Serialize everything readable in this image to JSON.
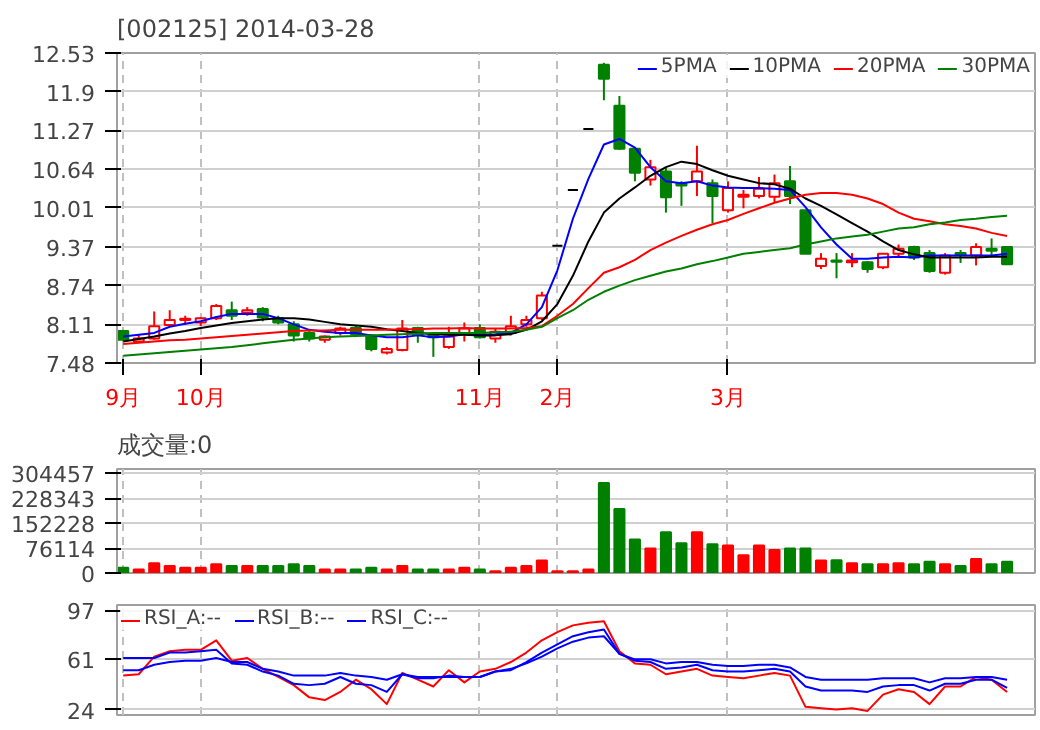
{
  "chart_data": [
    {
      "type": "candlestick",
      "title": "[002125] 2014-03-28",
      "categories": [
        "9月",
        null,
        null,
        null,
        null,
        "10月",
        null,
        null,
        null,
        null,
        null,
        null,
        null,
        null,
        null,
        null,
        null,
        null,
        null,
        null,
        null,
        null,
        null,
        "11月",
        null,
        null,
        null,
        null,
        "2月",
        null,
        null,
        null,
        null,
        null,
        null,
        null,
        null,
        null,
        null,
        "3月",
        null,
        null,
        null,
        null,
        null,
        null,
        null,
        null,
        null,
        null,
        null,
        null,
        null,
        null,
        null,
        null,
        null,
        null
      ],
      "ohlc": [
        [
          8.0,
          8.02,
          7.84,
          7.86
        ],
        [
          7.83,
          7.95,
          7.81,
          7.88
        ],
        [
          7.88,
          8.32,
          7.86,
          8.08
        ],
        [
          8.1,
          8.34,
          8.08,
          8.18
        ],
        [
          8.18,
          8.25,
          8.1,
          8.2
        ],
        [
          8.14,
          8.23,
          8.08,
          8.21
        ],
        [
          8.21,
          8.44,
          8.18,
          8.41
        ],
        [
          8.34,
          8.48,
          8.18,
          8.25
        ],
        [
          8.3,
          8.39,
          8.25,
          8.34
        ],
        [
          8.36,
          8.39,
          8.16,
          8.22
        ],
        [
          8.21,
          8.25,
          8.11,
          8.14
        ],
        [
          8.11,
          8.16,
          7.83,
          7.93
        ],
        [
          7.97,
          8.0,
          7.83,
          7.88
        ],
        [
          7.86,
          7.93,
          7.81,
          7.91
        ],
        [
          7.97,
          8.07,
          7.93,
          8.04
        ],
        [
          8.05,
          8.08,
          7.91,
          7.95
        ],
        [
          7.93,
          7.95,
          7.67,
          7.71
        ],
        [
          7.65,
          7.74,
          7.62,
          7.71
        ],
        [
          7.69,
          8.18,
          7.67,
          8.04
        ],
        [
          8.05,
          8.07,
          7.81,
          7.95
        ],
        [
          7.93,
          7.95,
          7.58,
          7.9
        ],
        [
          7.74,
          8.07,
          7.71,
          7.91
        ],
        [
          7.97,
          8.14,
          7.83,
          8.04
        ],
        [
          8.05,
          8.11,
          7.88,
          7.9
        ],
        [
          7.88,
          8.04,
          7.81,
          7.99
        ],
        [
          7.97,
          8.25,
          7.93,
          8.08
        ],
        [
          8.11,
          8.25,
          8.07,
          8.18
        ],
        [
          8.21,
          8.64,
          8.18,
          8.58
        ],
        [
          9.39,
          9.39,
          9.39,
          9.39
        ],
        [
          10.3,
          10.3,
          10.3,
          10.3
        ],
        [
          11.29,
          11.29,
          11.29,
          11.29
        ],
        [
          12.34,
          12.37,
          11.76,
          12.11
        ],
        [
          11.67,
          11.83,
          10.95,
          10.97
        ],
        [
          10.97,
          10.97,
          10.44,
          10.58
        ],
        [
          10.47,
          10.79,
          10.37,
          10.67
        ],
        [
          10.6,
          10.67,
          9.93,
          10.18
        ],
        [
          10.41,
          10.44,
          10.04,
          10.37
        ],
        [
          10.44,
          11.02,
          10.2,
          10.6
        ],
        [
          10.41,
          10.47,
          9.76,
          10.2
        ],
        [
          9.97,
          10.44,
          9.93,
          10.33
        ],
        [
          10.19,
          10.3,
          10.0,
          10.22
        ],
        [
          10.2,
          10.51,
          10.16,
          10.32
        ],
        [
          10.19,
          10.55,
          10.09,
          10.41
        ],
        [
          10.44,
          10.69,
          10.07,
          10.2
        ],
        [
          9.97,
          9.97,
          9.26,
          9.26
        ],
        [
          9.06,
          9.27,
          9.01,
          9.18
        ],
        [
          9.15,
          9.27,
          8.86,
          9.13
        ],
        [
          9.12,
          9.27,
          9.04,
          9.15
        ],
        [
          9.12,
          9.14,
          8.95,
          9.01
        ],
        [
          9.04,
          9.27,
          9.01,
          9.26
        ],
        [
          9.26,
          9.41,
          9.21,
          9.34
        ],
        [
          9.37,
          9.39,
          9.16,
          9.2
        ],
        [
          9.27,
          9.32,
          8.95,
          8.98
        ],
        [
          8.95,
          9.27,
          8.92,
          9.23
        ],
        [
          9.27,
          9.32,
          9.11,
          9.24
        ],
        [
          9.23,
          9.43,
          9.07,
          9.37
        ],
        [
          9.34,
          9.51,
          9.23,
          9.31
        ],
        [
          9.37,
          9.37,
          9.09,
          9.09
        ]
      ],
      "colors": [
        "#008000",
        "#ff0000",
        "#ff0000",
        "#ff0000",
        "#ff0000",
        "#ff0000",
        "#ff0000",
        "#008000",
        "#ff0000",
        "#008000",
        "#008000",
        "#008000",
        "#008000",
        "#ff0000",
        "#ff0000",
        "#008000",
        "#008000",
        "#ff0000",
        "#ff0000",
        "#008000",
        "#008000",
        "#ff0000",
        "#ff0000",
        "#008000",
        "#ff0000",
        "#ff0000",
        "#ff0000",
        "#ff0000",
        "#000000",
        "#000000",
        "#000000",
        "#008000",
        "#008000",
        "#008000",
        "#ff0000",
        "#008000",
        "#008000",
        "#ff0000",
        "#008000",
        "#ff0000",
        "#ff0000",
        "#ff0000",
        "#ff0000",
        "#008000",
        "#008000",
        "#ff0000",
        "#008000",
        "#ff0000",
        "#008000",
        "#ff0000",
        "#ff0000",
        "#008000",
        "#008000",
        "#ff0000",
        "#008000",
        "#ff0000",
        "#008000",
        "#008000"
      ],
      "series": [
        {
          "name": "5PMA",
          "type": "line",
          "color": "#0000ff",
          "values": [
            7.91,
            7.94,
            7.97,
            8.07,
            8.12,
            8.16,
            8.23,
            8.28,
            8.28,
            8.28,
            8.21,
            8.11,
            8.02,
            7.99,
            7.97,
            7.97,
            7.93,
            7.9,
            7.9,
            7.93,
            7.9,
            7.91,
            7.95,
            7.94,
            7.95,
            7.97,
            8.11,
            8.39,
            8.99,
            9.83,
            10.48,
            11.04,
            11.13,
            10.99,
            10.67,
            10.44,
            10.41,
            10.44,
            10.37,
            10.34,
            10.33,
            10.33,
            10.32,
            10.3,
            10.02,
            9.69,
            9.41,
            9.18,
            9.18,
            9.2,
            9.21,
            9.2,
            9.23,
            9.23,
            9.23,
            9.23,
            9.23,
            9.26
          ]
        },
        {
          "name": "10PMA",
          "type": "line",
          "color": "#000000",
          "values": [
            7.83,
            7.87,
            7.91,
            7.96,
            8.0,
            8.05,
            8.09,
            8.13,
            8.16,
            8.19,
            8.21,
            8.21,
            8.19,
            8.15,
            8.11,
            8.09,
            8.07,
            8.03,
            8.0,
            7.97,
            7.95,
            7.94,
            7.94,
            7.93,
            7.93,
            7.95,
            8.02,
            8.16,
            8.44,
            8.9,
            9.46,
            9.93,
            10.16,
            10.34,
            10.53,
            10.67,
            10.76,
            10.72,
            10.62,
            10.53,
            10.47,
            10.41,
            10.39,
            10.32,
            10.16,
            10.04,
            9.9,
            9.76,
            9.62,
            9.46,
            9.32,
            9.25,
            9.2,
            9.2,
            9.2,
            9.2,
            9.21,
            9.21
          ]
        },
        {
          "name": "20PMA",
          "type": "line",
          "color": "#ff0000",
          "values": [
            7.79,
            7.81,
            7.83,
            7.85,
            7.86,
            7.88,
            7.9,
            7.92,
            7.94,
            7.96,
            7.98,
            8.0,
            8.01,
            8.01,
            8.02,
            8.02,
            8.02,
            8.02,
            8.03,
            8.03,
            8.04,
            8.04,
            8.05,
            8.04,
            8.04,
            8.04,
            8.05,
            8.08,
            8.25,
            8.44,
            8.7,
            8.95,
            9.04,
            9.16,
            9.32,
            9.44,
            9.55,
            9.65,
            9.74,
            9.81,
            9.91,
            10.0,
            10.09,
            10.16,
            10.22,
            10.25,
            10.25,
            10.22,
            10.16,
            10.07,
            9.93,
            9.83,
            9.79,
            9.74,
            9.71,
            9.67,
            9.6,
            9.55
          ]
        },
        {
          "name": "30PMA",
          "type": "line",
          "color": "#008000",
          "values": [
            7.6,
            7.62,
            7.64,
            7.66,
            7.68,
            7.7,
            7.72,
            7.74,
            7.77,
            7.8,
            7.83,
            7.86,
            7.88,
            7.9,
            7.91,
            7.92,
            7.93,
            7.94,
            7.95,
            7.96,
            7.97,
            7.97,
            7.97,
            7.97,
            7.98,
            7.99,
            8.02,
            8.07,
            8.21,
            8.34,
            8.51,
            8.64,
            8.74,
            8.83,
            8.9,
            8.97,
            9.02,
            9.09,
            9.14,
            9.2,
            9.26,
            9.29,
            9.32,
            9.35,
            9.41,
            9.46,
            9.51,
            9.54,
            9.57,
            9.62,
            9.67,
            9.69,
            9.74,
            9.77,
            9.81,
            9.83,
            9.86,
            9.88
          ]
        }
      ],
      "ylim": [
        7.48,
        12.53
      ],
      "yticks": [
        7.48,
        8.11,
        8.74,
        9.37,
        10.01,
        10.64,
        11.27,
        11.9,
        12.53
      ],
      "grid": true,
      "legend": "top right"
    },
    {
      "type": "bar",
      "title": "成交量:0",
      "categories": [
        null,
        null,
        null,
        null,
        null,
        null,
        null,
        null,
        null,
        null,
        null,
        null,
        null,
        null,
        null,
        null,
        null,
        null,
        null,
        null,
        null,
        null,
        null,
        null,
        null,
        null,
        null,
        null,
        null,
        null,
        null,
        null,
        null,
        null,
        null,
        null,
        null,
        null,
        null,
        null,
        null,
        null,
        null,
        null,
        null,
        null,
        null,
        null,
        null,
        null,
        null,
        null,
        null,
        null,
        null,
        null,
        null,
        null
      ],
      "values": [
        16000,
        11000,
        30000,
        21000,
        16000,
        16000,
        27000,
        21000,
        21000,
        21000,
        21000,
        27000,
        21000,
        11000,
        11000,
        11000,
        16000,
        11000,
        21000,
        11000,
        11000,
        11000,
        16000,
        11000,
        5000,
        16000,
        21000,
        38000,
        5000,
        5000,
        11000,
        274000,
        195000,
        102000,
        75000,
        124000,
        91000,
        124000,
        88000,
        84000,
        54000,
        84000,
        70000,
        75000,
        75000,
        38000,
        39000,
        30000,
        27000,
        27000,
        30000,
        27000,
        34000,
        27000,
        21000,
        43000,
        27000,
        34000
      ],
      "colors": [
        "#008000",
        "#ff0000",
        "#ff0000",
        "#ff0000",
        "#ff0000",
        "#ff0000",
        "#ff0000",
        "#008000",
        "#ff0000",
        "#008000",
        "#008000",
        "#008000",
        "#008000",
        "#ff0000",
        "#ff0000",
        "#008000",
        "#008000",
        "#ff0000",
        "#ff0000",
        "#008000",
        "#008000",
        "#ff0000",
        "#ff0000",
        "#008000",
        "#ff0000",
        "#ff0000",
        "#ff0000",
        "#ff0000",
        "#ff0000",
        "#ff0000",
        "#ff0000",
        "#008000",
        "#008000",
        "#008000",
        "#ff0000",
        "#008000",
        "#008000",
        "#ff0000",
        "#008000",
        "#ff0000",
        "#ff0000",
        "#ff0000",
        "#ff0000",
        "#008000",
        "#008000",
        "#ff0000",
        "#008000",
        "#ff0000",
        "#008000",
        "#ff0000",
        "#ff0000",
        "#008000",
        "#008000",
        "#ff0000",
        "#008000",
        "#ff0000",
        "#008000",
        "#008000"
      ],
      "ylim": [
        0,
        317000
      ],
      "yticks": [
        0,
        76114,
        152228,
        228343,
        304457
      ],
      "grid": true,
      "tick_labels": "y"
    },
    {
      "type": "line",
      "categories": [
        null,
        null,
        null,
        null,
        null,
        null,
        null,
        null,
        null,
        null,
        null,
        null,
        null,
        null,
        null,
        null,
        null,
        null,
        null,
        null,
        null,
        null,
        null,
        null,
        null,
        null,
        null,
        null,
        null,
        null,
        null,
        null,
        null,
        null,
        null,
        null,
        null,
        null,
        null,
        null,
        null,
        null,
        null,
        null,
        null,
        null,
        null,
        null,
        null,
        null,
        null,
        null,
        null,
        null,
        null,
        null,
        null,
        null
      ],
      "series": [
        {
          "name": "RSI_A:--",
          "color": "#ff0000",
          "values": [
            49,
            50,
            63,
            67,
            68,
            68,
            75,
            60,
            62,
            54,
            48,
            42,
            33,
            31,
            37,
            46,
            39,
            28,
            51,
            46,
            41,
            53,
            44,
            52,
            54,
            59,
            66,
            75,
            81,
            86,
            88,
            89,
            67,
            58,
            57,
            50,
            52,
            54,
            49,
            48,
            47,
            49,
            51,
            49,
            26,
            25,
            24,
            25,
            23,
            35,
            39,
            37,
            28,
            41,
            41,
            48,
            46,
            37
          ]
        },
        {
          "name": "RSI_B:--",
          "color": "#0000ff",
          "values": [
            62,
            62,
            62,
            66,
            66,
            67,
            68,
            58,
            57,
            52,
            49,
            43,
            42,
            43,
            48,
            43,
            42,
            37,
            50,
            47,
            47,
            49,
            48,
            48,
            52,
            53,
            59,
            66,
            72,
            78,
            81,
            83,
            65,
            60,
            59,
            54,
            55,
            57,
            53,
            52,
            52,
            53,
            54,
            52,
            41,
            38,
            38,
            38,
            37,
            41,
            42,
            42,
            38,
            43,
            43,
            46,
            46,
            40
          ]
        },
        {
          "name": "RSI_C:--",
          "color": "#0000ff",
          "values": [
            53,
            53,
            57,
            59,
            60,
            60,
            62,
            59,
            59,
            54,
            52,
            49,
            49,
            49,
            51,
            49,
            48,
            46,
            50,
            48,
            48,
            48,
            48,
            48,
            52,
            54,
            58,
            63,
            69,
            74,
            77,
            78,
            65,
            61,
            61,
            58,
            59,
            59,
            57,
            56,
            56,
            57,
            57,
            55,
            48,
            46,
            46,
            46,
            46,
            47,
            47,
            47,
            44,
            47,
            47,
            48,
            48,
            46
          ]
        }
      ],
      "ylim": [
        20,
        101
      ],
      "yticks": [
        24,
        61,
        97
      ],
      "grid": true,
      "tick_labels": "y",
      "legend": "top left"
    }
  ]
}
